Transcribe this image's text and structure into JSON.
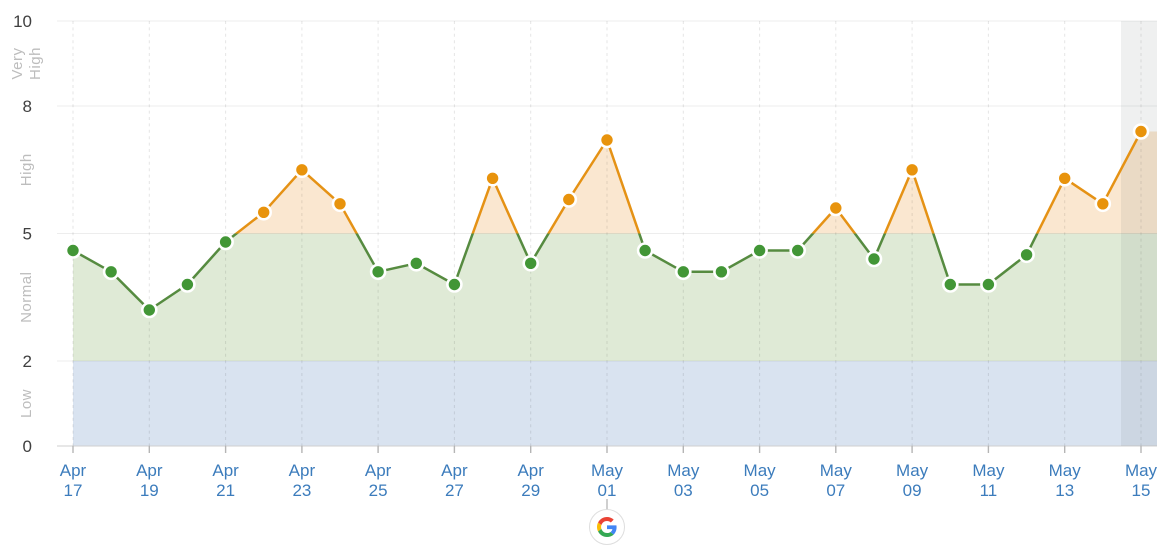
{
  "page": {
    "background": "#ffffff",
    "attribution_icon": "google-logo"
  },
  "chart_data": {
    "type": "line",
    "title": "",
    "xlabel": "",
    "ylabel": "",
    "ylim": [
      0,
      10
    ],
    "y_ticks": [
      0,
      2,
      5,
      8,
      10
    ],
    "grid": true,
    "legend": null,
    "x": [
      "Apr 17",
      "Apr 18",
      "Apr 19",
      "Apr 20",
      "Apr 21",
      "Apr 22",
      "Apr 23",
      "Apr 24",
      "Apr 25",
      "Apr 26",
      "Apr 27",
      "Apr 28",
      "Apr 29",
      "Apr 30",
      "May 01",
      "May 02",
      "May 03",
      "May 04",
      "May 05",
      "May 06",
      "May 07",
      "May 08",
      "May 09",
      "May 10",
      "May 11",
      "May 12",
      "May 13",
      "May 14",
      "May 15"
    ],
    "values": [
      4.6,
      4.1,
      3.2,
      3.8,
      4.8,
      5.5,
      6.5,
      5.7,
      4.1,
      4.3,
      3.8,
      6.3,
      4.3,
      5.8,
      7.2,
      4.6,
      4.1,
      4.1,
      4.6,
      4.6,
      5.6,
      4.4,
      6.5,
      3.8,
      3.8,
      4.5,
      6.3,
      5.7,
      7.4
    ],
    "high_threshold": 5,
    "x_tick_labels": [
      {
        "month": "Apr",
        "day": "17",
        "i": 0
      },
      {
        "month": "Apr",
        "day": "19",
        "i": 2
      },
      {
        "month": "Apr",
        "day": "21",
        "i": 4
      },
      {
        "month": "Apr",
        "day": "23",
        "i": 6
      },
      {
        "month": "Apr",
        "day": "25",
        "i": 8
      },
      {
        "month": "Apr",
        "day": "27",
        "i": 10
      },
      {
        "month": "Apr",
        "day": "29",
        "i": 12
      },
      {
        "month": "May",
        "day": "01",
        "i": 14
      },
      {
        "month": "May",
        "day": "03",
        "i": 16
      },
      {
        "month": "May",
        "day": "05",
        "i": 18
      },
      {
        "month": "May",
        "day": "07",
        "i": 20
      },
      {
        "month": "May",
        "day": "09",
        "i": 22
      },
      {
        "month": "May",
        "day": "11",
        "i": 24
      },
      {
        "month": "May",
        "day": "13",
        "i": 26
      },
      {
        "month": "May",
        "day": "15",
        "i": 28
      }
    ],
    "bands": [
      {
        "label": "Low",
        "from": 0,
        "to": 2,
        "fill": "#d9e3f0"
      },
      {
        "label": "Normal",
        "from": 2,
        "to": 5,
        "fill": "#dfead6"
      },
      {
        "label": "High",
        "from": 5,
        "to": 8,
        "fill": "#fae7d0"
      },
      {
        "label": "Very High",
        "from": 8,
        "to": 10,
        "fill": "none"
      }
    ],
    "highlighted_x": "May 15",
    "colors": {
      "point_normal": "#429636",
      "point_high": "#e8930c",
      "line_normal": "#568b40",
      "line_high": "#e59215",
      "x_label": "#3c7cbc",
      "y_tick_label": "#404040",
      "band_label": "#bdbdbd",
      "grid_line": "rgba(0,0,0,0.07)",
      "grid_dash": "rgba(0,0,0,0.10)",
      "axis_line": "#cfcfcf",
      "tick_mark": "#b5b5b5",
      "highlight_band": "rgba(100,105,110,0.10)",
      "google_blue": "#4285F4",
      "google_red": "#EA4335",
      "google_yellow": "#FBBC05",
      "google_green": "#34A853"
    }
  }
}
